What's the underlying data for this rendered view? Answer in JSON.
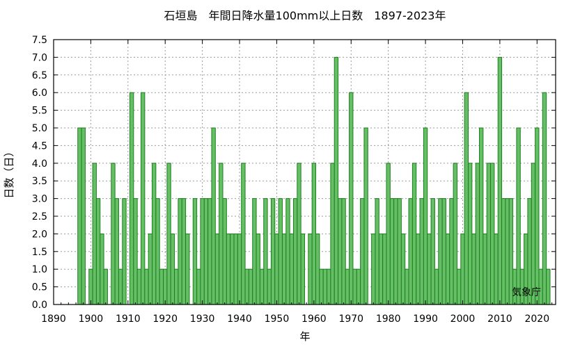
{
  "chart_data": {
    "type": "bar",
    "title": "石垣島　年間日降水量100mm以上日数　1897-2023年",
    "xlabel": "年",
    "ylabel": "日数（日）",
    "xlim": [
      1890,
      2025
    ],
    "ylim": [
      0,
      7.5
    ],
    "x_ticks": [
      "1890",
      "1900",
      "1910",
      "1920",
      "1930",
      "1940",
      "1950",
      "1960",
      "1970",
      "1980",
      "1990",
      "2000",
      "2010",
      "2020"
    ],
    "y_ticks": [
      "0.0",
      "0.5",
      "1.0",
      "1.5",
      "2.0",
      "2.5",
      "3.0",
      "3.5",
      "4.0",
      "4.5",
      "5.0",
      "5.5",
      "6.0",
      "6.5",
      "7.0",
      "7.5"
    ],
    "grid": true,
    "annotation": "気象庁",
    "colors": {
      "bar_fill": "#66bf66",
      "bar_stroke": "#1a801a",
      "grid": "#9a9a9a"
    },
    "series": [
      {
        "years": [
          1897,
          1898,
          1899,
          1900,
          1901,
          1902,
          1903,
          1904,
          1905,
          1906,
          1907,
          1908,
          1909,
          1910,
          1911,
          1912,
          1913,
          1914,
          1915,
          1916,
          1917,
          1918,
          1919,
          1920,
          1921,
          1922,
          1923,
          1924,
          1925,
          1926,
          1927,
          1928,
          1929,
          1930,
          1931,
          1932,
          1933,
          1934,
          1935,
          1936,
          1937,
          1938,
          1939,
          1940,
          1941,
          1942,
          1943,
          1944,
          1945,
          1946,
          1947,
          1948,
          1949,
          1950,
          1951,
          1952,
          1953,
          1954,
          1955,
          1956,
          1957,
          1958,
          1959,
          1960,
          1961,
          1962,
          1963,
          1964,
          1965,
          1966,
          1967,
          1968,
          1969,
          1970,
          1971,
          1972,
          1973,
          1974,
          1975,
          1976,
          1977,
          1978,
          1979,
          1980,
          1981,
          1982,
          1983,
          1984,
          1985,
          1986,
          1987,
          1988,
          1989,
          1990,
          1991,
          1992,
          1993,
          1994,
          1995,
          1996,
          1997,
          1998,
          1999,
          2000,
          2001,
          2002,
          2003,
          2004,
          2005,
          2006,
          2007,
          2008,
          2009,
          2010,
          2011,
          2012,
          2013,
          2014,
          2015,
          2016,
          2017,
          2018,
          2019,
          2020,
          2021,
          2022,
          2023
        ],
        "values": [
          5,
          5,
          0,
          1,
          4,
          3,
          2,
          1,
          0,
          4,
          3,
          1,
          3,
          0,
          6,
          3,
          1,
          6,
          1,
          2,
          4,
          3,
          1,
          1,
          4,
          2,
          1,
          3,
          3,
          2,
          0,
          3,
          1,
          3,
          3,
          3,
          5,
          2,
          4,
          3,
          2,
          2,
          2,
          2,
          4,
          1,
          1,
          3,
          2,
          1,
          3,
          1,
          3,
          2,
          3,
          2,
          3,
          2,
          3,
          4,
          2,
          0,
          2,
          4,
          2,
          1,
          1,
          1,
          4,
          7,
          3,
          3,
          1,
          6,
          1,
          1,
          3,
          5,
          0,
          2,
          3,
          2,
          2,
          4,
          3,
          3,
          3,
          2,
          1,
          3,
          4,
          2,
          3,
          5,
          2,
          3,
          1,
          3,
          3,
          2,
          3,
          4,
          1,
          2,
          6,
          4,
          2,
          4,
          5,
          2,
          4,
          4,
          2,
          7,
          3,
          3,
          3,
          1,
          5,
          1,
          2,
          3,
          4,
          5,
          1,
          6,
          1
        ]
      }
    ]
  }
}
